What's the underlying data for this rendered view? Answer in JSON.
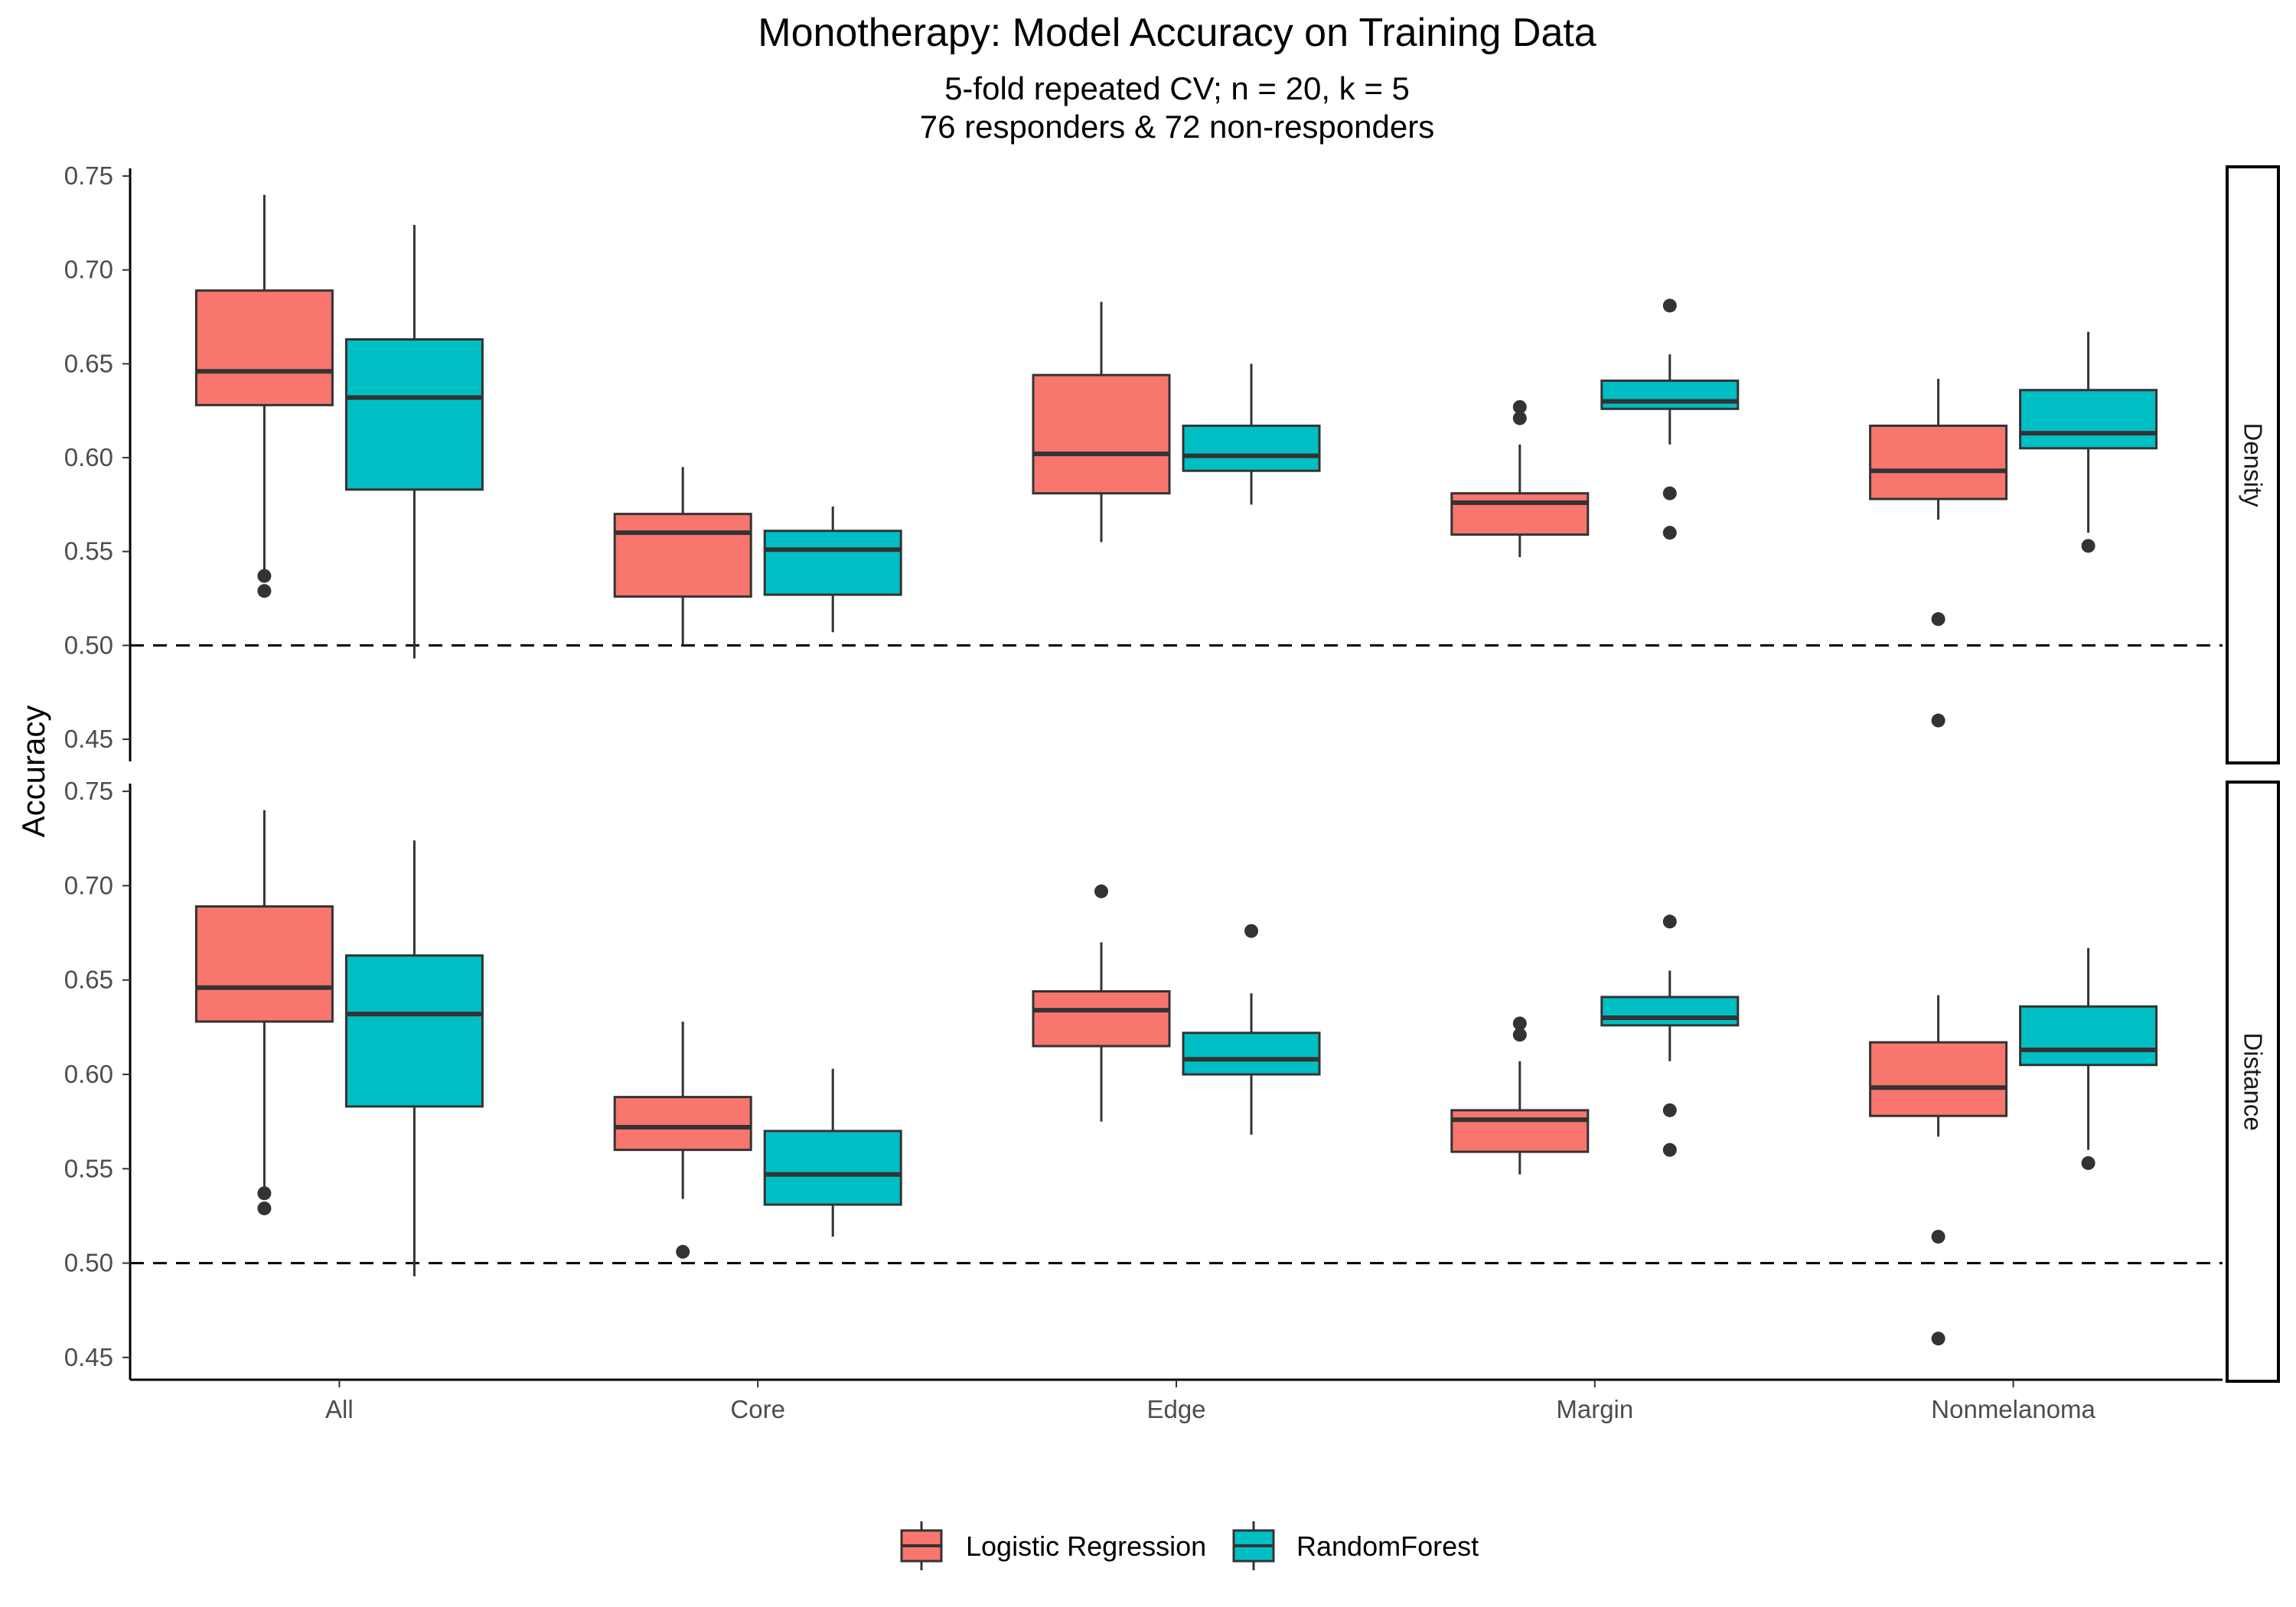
{
  "chart_data": {
    "type": "box",
    "title": "Monotherapy: Model Accuracy on Training Data",
    "subtitle": [
      "5-fold repeated CV; n = 20, k = 5",
      "76 responders & 72 non-responders"
    ],
    "ylabel": "Accuracy",
    "xlabel": "",
    "categories": [
      "All",
      "Core",
      "Edge",
      "Margin",
      "Nonmelanoma"
    ],
    "ylim": [
      0.45,
      0.75
    ],
    "yticks": [
      0.45,
      0.5,
      0.55,
      0.6,
      0.65,
      0.7,
      0.75
    ],
    "ytick_labels": [
      "0.45",
      "0.50",
      "0.55",
      "0.60",
      "0.65",
      "0.70",
      "0.75"
    ],
    "reference_line": 0.5,
    "legend_position": "bottom",
    "series": [
      {
        "name": "Logistic Regression",
        "color": "#F8766D"
      },
      {
        "name": "RandomForest",
        "color": "#00BFC4"
      }
    ],
    "panels": [
      {
        "label": "Density",
        "boxes": [
          {
            "category": "All",
            "series": "Logistic Regression",
            "low": 0.537,
            "q1": 0.628,
            "median": 0.646,
            "q3": 0.689,
            "high": 0.74,
            "outliers": [
              0.537,
              0.529
            ]
          },
          {
            "category": "All",
            "series": "RandomForest",
            "low": 0.493,
            "q1": 0.583,
            "median": 0.632,
            "q3": 0.663,
            "high": 0.724,
            "outliers": []
          },
          {
            "category": "Core",
            "series": "Logistic Regression",
            "low": 0.5,
            "q1": 0.526,
            "median": 0.56,
            "q3": 0.57,
            "high": 0.595,
            "outliers": []
          },
          {
            "category": "Core",
            "series": "RandomForest",
            "low": 0.507,
            "q1": 0.527,
            "median": 0.551,
            "q3": 0.561,
            "high": 0.574,
            "outliers": []
          },
          {
            "category": "Edge",
            "series": "Logistic Regression",
            "low": 0.555,
            "q1": 0.581,
            "median": 0.602,
            "q3": 0.644,
            "high": 0.683,
            "outliers": []
          },
          {
            "category": "Edge",
            "series": "RandomForest",
            "low": 0.575,
            "q1": 0.593,
            "median": 0.601,
            "q3": 0.617,
            "high": 0.65,
            "outliers": []
          },
          {
            "category": "Margin",
            "series": "Logistic Regression",
            "low": 0.547,
            "q1": 0.559,
            "median": 0.576,
            "q3": 0.581,
            "high": 0.607,
            "outliers": [
              0.627,
              0.621
            ]
          },
          {
            "category": "Margin",
            "series": "RandomForest",
            "low": 0.607,
            "q1": 0.626,
            "median": 0.63,
            "q3": 0.641,
            "high": 0.655,
            "outliers": [
              0.681,
              0.581,
              0.56
            ]
          },
          {
            "category": "Nonmelanoma",
            "series": "Logistic Regression",
            "low": 0.567,
            "q1": 0.578,
            "median": 0.593,
            "q3": 0.617,
            "high": 0.642,
            "outliers": [
              0.514,
              0.46
            ]
          },
          {
            "category": "Nonmelanoma",
            "series": "RandomForest",
            "low": 0.56,
            "q1": 0.605,
            "median": 0.613,
            "q3": 0.636,
            "high": 0.667,
            "outliers": [
              0.553
            ]
          }
        ]
      },
      {
        "label": "Distance",
        "boxes": [
          {
            "category": "All",
            "series": "Logistic Regression",
            "low": 0.537,
            "q1": 0.628,
            "median": 0.646,
            "q3": 0.689,
            "high": 0.74,
            "outliers": [
              0.537,
              0.529
            ]
          },
          {
            "category": "All",
            "series": "RandomForest",
            "low": 0.493,
            "q1": 0.583,
            "median": 0.632,
            "q3": 0.663,
            "high": 0.724,
            "outliers": []
          },
          {
            "category": "Core",
            "series": "Logistic Regression",
            "low": 0.534,
            "q1": 0.56,
            "median": 0.572,
            "q3": 0.588,
            "high": 0.628,
            "outliers": [
              0.506
            ]
          },
          {
            "category": "Core",
            "series": "RandomForest",
            "low": 0.514,
            "q1": 0.531,
            "median": 0.547,
            "q3": 0.57,
            "high": 0.603,
            "outliers": []
          },
          {
            "category": "Edge",
            "series": "Logistic Regression",
            "low": 0.575,
            "q1": 0.615,
            "median": 0.634,
            "q3": 0.644,
            "high": 0.67,
            "outliers": [
              0.697
            ]
          },
          {
            "category": "Edge",
            "series": "RandomForest",
            "low": 0.568,
            "q1": 0.6,
            "median": 0.608,
            "q3": 0.622,
            "high": 0.643,
            "outliers": [
              0.676
            ]
          },
          {
            "category": "Margin",
            "series": "Logistic Regression",
            "low": 0.547,
            "q1": 0.559,
            "median": 0.576,
            "q3": 0.581,
            "high": 0.607,
            "outliers": [
              0.627,
              0.621
            ]
          },
          {
            "category": "Margin",
            "series": "RandomForest",
            "low": 0.607,
            "q1": 0.626,
            "median": 0.63,
            "q3": 0.641,
            "high": 0.655,
            "outliers": [
              0.681,
              0.581,
              0.56
            ]
          },
          {
            "category": "Nonmelanoma",
            "series": "Logistic Regression",
            "low": 0.567,
            "q1": 0.578,
            "median": 0.593,
            "q3": 0.617,
            "high": 0.642,
            "outliers": [
              0.514,
              0.46
            ]
          },
          {
            "category": "Nonmelanoma",
            "series": "RandomForest",
            "low": 0.56,
            "q1": 0.605,
            "median": 0.613,
            "q3": 0.636,
            "high": 0.667,
            "outliers": [
              0.553
            ]
          }
        ]
      }
    ]
  }
}
